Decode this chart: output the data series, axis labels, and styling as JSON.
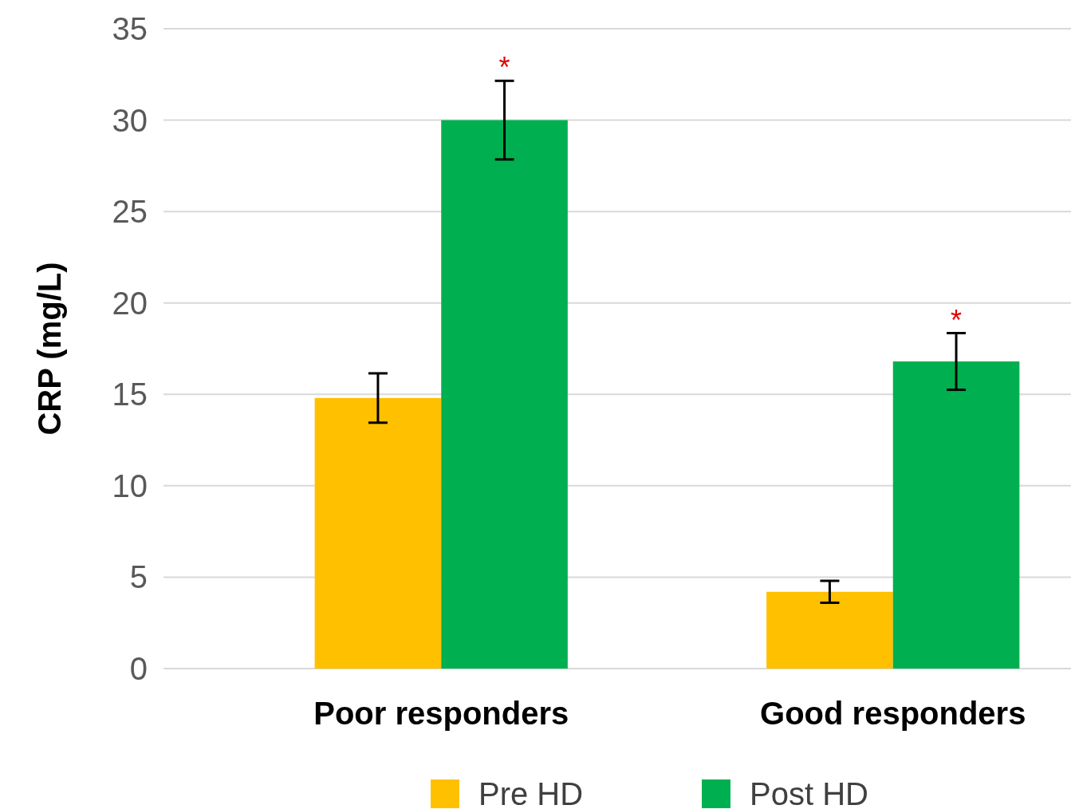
{
  "chart_data": {
    "type": "bar",
    "ylabel": "CRP (mg/L)",
    "categories": [
      "Poor responders",
      "Good responders"
    ],
    "series": [
      {
        "name": "Pre HD",
        "color": "#ffc000",
        "values": [
          14.8,
          4.2
        ],
        "errors": [
          1.35,
          0.6
        ]
      },
      {
        "name": "Post HD",
        "color": "#00b050",
        "values": [
          30,
          16.8
        ],
        "errors": [
          2.15,
          1.55
        ]
      }
    ],
    "ylim": [
      0,
      35
    ],
    "yticks": [
      0,
      5,
      10,
      15,
      20,
      25,
      30,
      35
    ],
    "grid": "y",
    "legend": "bottom",
    "annotations": [
      "*",
      "*"
    ]
  }
}
